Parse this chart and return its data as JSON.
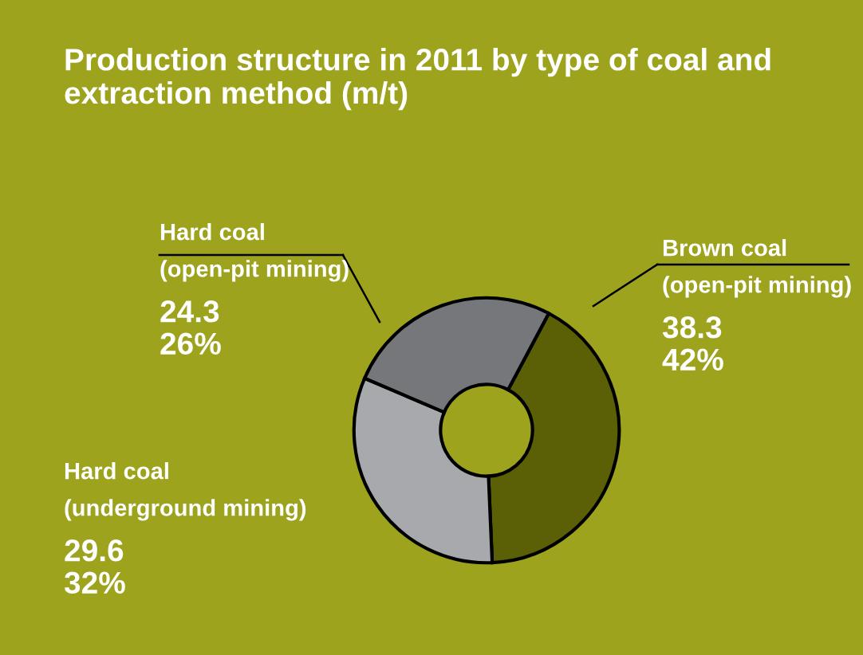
{
  "chart_data": {
    "type": "donut",
    "title": "Production structure in 2011 by type of coal and extraction method (m/t)",
    "categories": [
      "Brown coal\n(open-pit mining)",
      "Hard coal\n(underground mining)",
      "Hard coal\n(open-pit mining)"
    ],
    "values": [
      38.3,
      29.6,
      24.3
    ],
    "value_labels": [
      "38.3\n42%",
      "29.6\n32%",
      "24.3\n26%"
    ],
    "colors": [
      "#5b5f05",
      "#a7a9ac",
      "#76777b"
    ]
  }
}
